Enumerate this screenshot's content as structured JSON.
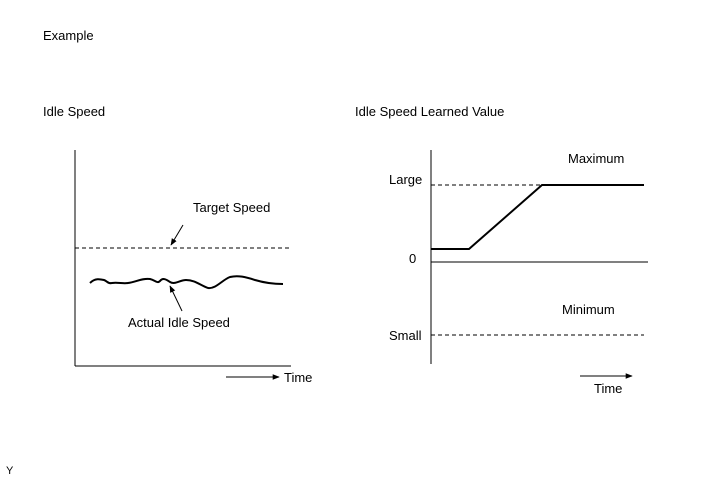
{
  "header": {
    "example_label": "Example",
    "figure_id": "Y"
  },
  "left_diagram": {
    "title": "Idle Speed",
    "target_label": "Target Speed",
    "actual_label": "Actual Idle Speed",
    "time_label": "Time"
  },
  "right_diagram": {
    "title": "Idle Speed Learned Value",
    "large_label": "Large",
    "zero_label": "0",
    "small_label": "Small",
    "maximum_label": "Maximum",
    "minimum_label": "Minimum",
    "time_label": "Time"
  },
  "colors": {
    "ink": "#000000",
    "background": "#ffffff"
  }
}
